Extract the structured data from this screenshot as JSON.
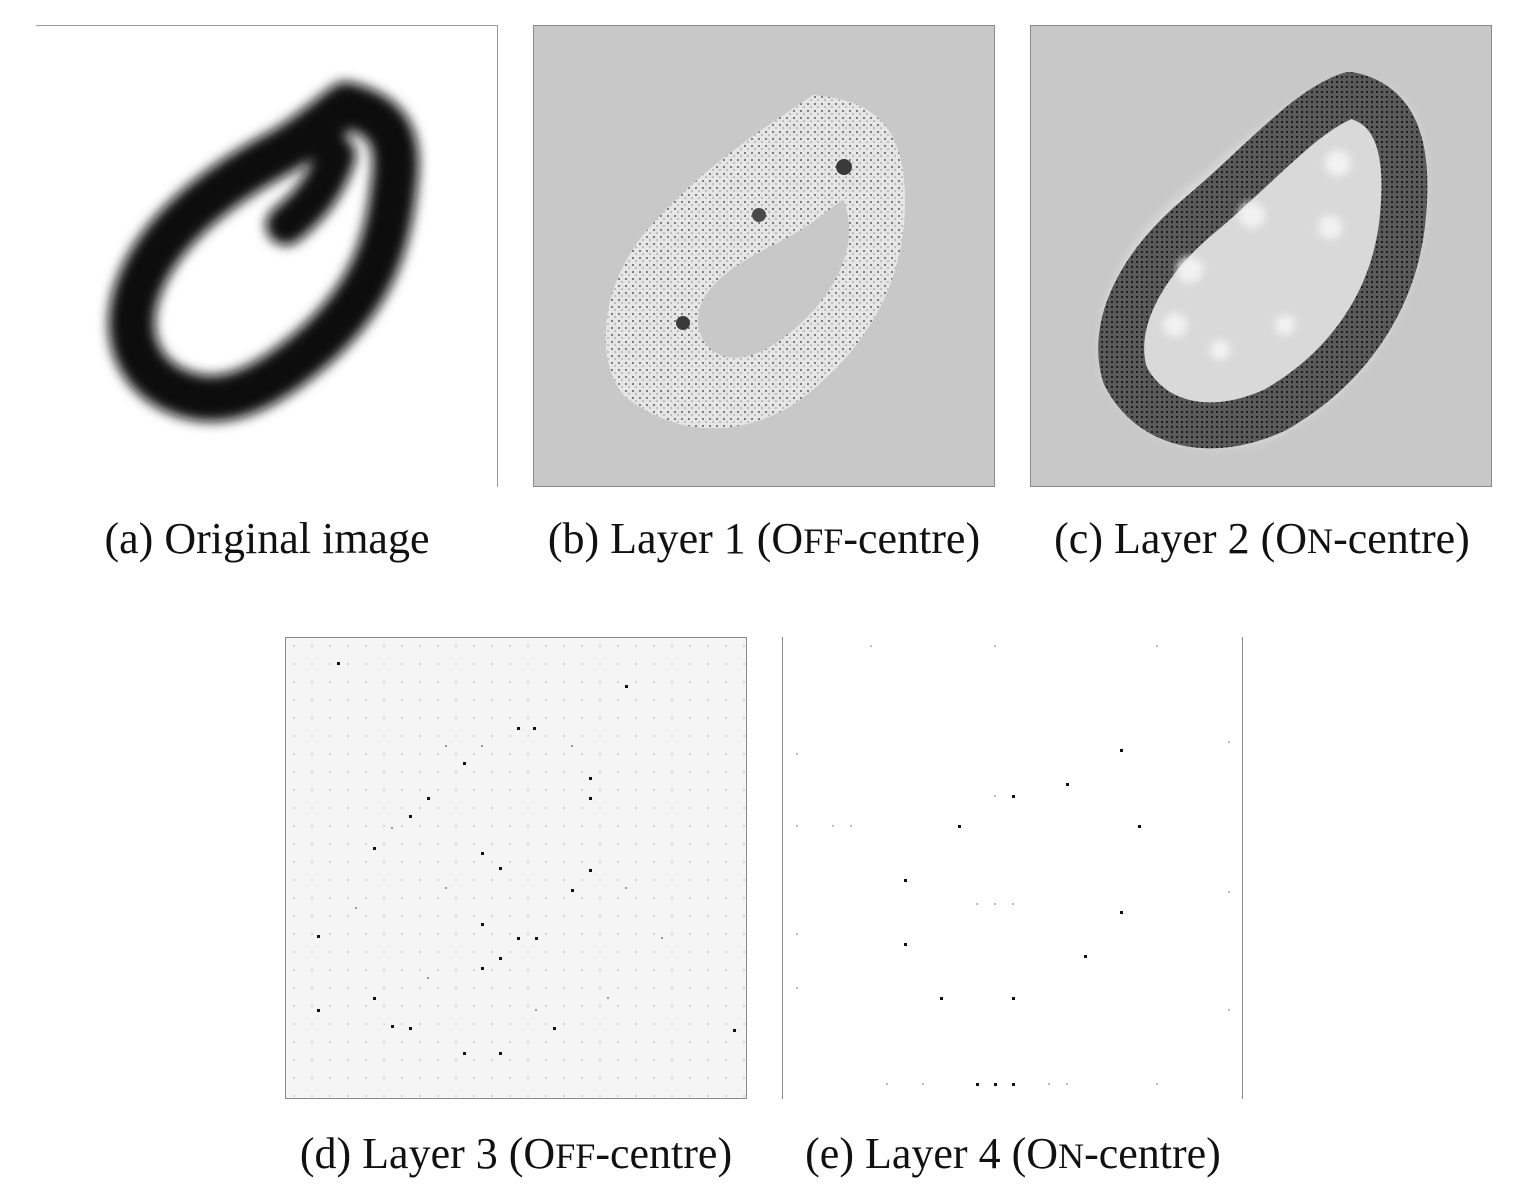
{
  "figure": {
    "panels": [
      {
        "id": "a",
        "caption_prefix": "(a) Original image",
        "description": "",
        "bg": "#ffffff"
      },
      {
        "id": "b",
        "caption_prefix": "(b) Layer 1 (",
        "caption_sc1": "O",
        "caption_sc2": "FF",
        "caption_suffix": "-centre)",
        "bg": "#c8c8c8"
      },
      {
        "id": "c",
        "caption_prefix": "(c) Layer 2 (",
        "caption_sc1": "O",
        "caption_sc2": "N",
        "caption_suffix": "-centre)",
        "bg": "#c8c8c8"
      },
      {
        "id": "d",
        "caption_prefix": "(d) Layer 3 (",
        "caption_sc1": "O",
        "caption_sc2": "FF",
        "caption_suffix": "-centre)",
        "bg": "#f5f5f5"
      },
      {
        "id": "e",
        "caption_prefix": "(e) Layer 4 (",
        "caption_sc1": "O",
        "caption_sc2": "N",
        "caption_suffix": "-centre)",
        "bg": "#ffffff"
      }
    ]
  }
}
